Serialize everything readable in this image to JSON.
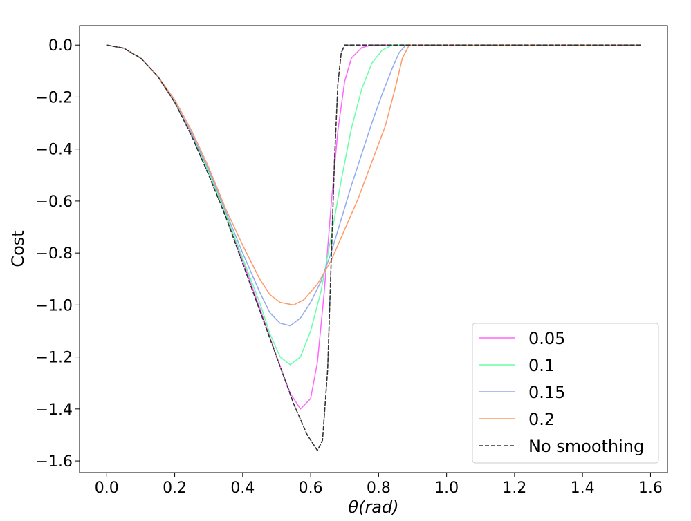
{
  "chart_data": {
    "type": "line",
    "title": "",
    "xlabel": "θ(rad)",
    "ylabel": "Cost",
    "xlim": [
      -0.08,
      1.65
    ],
    "ylim": [
      -1.645,
      0.075
    ],
    "xticks": [
      0.0,
      0.2,
      0.4,
      0.6,
      0.8,
      1.0,
      1.2,
      1.4,
      1.6
    ],
    "xtick_labels": [
      "0.0",
      "0.2",
      "0.4",
      "0.6",
      "0.8",
      "1.0",
      "1.2",
      "1.4",
      "1.6"
    ],
    "yticks": [
      0.0,
      -0.2,
      -0.4,
      -0.6,
      -0.8,
      -1.0,
      -1.2,
      -1.4,
      -1.6
    ],
    "ytick_labels": [
      "0.0",
      "−0.2",
      "−0.4",
      "−0.6",
      "−0.8",
      "−1.0",
      "−1.2",
      "−1.4",
      "−1.6"
    ],
    "grid": false,
    "legend_position": "lower-right",
    "series": [
      {
        "name": "0.05",
        "color": "#ff66ff",
        "dash": "solid",
        "points": [
          [
            0.0,
            0.0
          ],
          [
            0.05,
            -0.012
          ],
          [
            0.1,
            -0.05
          ],
          [
            0.15,
            -0.12
          ],
          [
            0.2,
            -0.22
          ],
          [
            0.25,
            -0.34
          ],
          [
            0.3,
            -0.49
          ],
          [
            0.35,
            -0.65
          ],
          [
            0.4,
            -0.83
          ],
          [
            0.45,
            -1.01
          ],
          [
            0.5,
            -1.2
          ],
          [
            0.54,
            -1.34
          ],
          [
            0.57,
            -1.4
          ],
          [
            0.6,
            -1.36
          ],
          [
            0.62,
            -1.22
          ],
          [
            0.64,
            -0.95
          ],
          [
            0.66,
            -0.62
          ],
          [
            0.68,
            -0.33
          ],
          [
            0.7,
            -0.14
          ],
          [
            0.72,
            -0.05
          ],
          [
            0.75,
            -0.01
          ],
          [
            0.78,
            0.0
          ],
          [
            1.0,
            0.0
          ],
          [
            1.2,
            0.0
          ],
          [
            1.4,
            0.0
          ],
          [
            1.57,
            0.0
          ]
        ]
      },
      {
        "name": "0.1",
        "color": "#66ffaa",
        "dash": "solid",
        "points": [
          [
            0.0,
            0.0
          ],
          [
            0.05,
            -0.012
          ],
          [
            0.1,
            -0.05
          ],
          [
            0.15,
            -0.12
          ],
          [
            0.2,
            -0.22
          ],
          [
            0.25,
            -0.34
          ],
          [
            0.3,
            -0.49
          ],
          [
            0.35,
            -0.65
          ],
          [
            0.4,
            -0.82
          ],
          [
            0.45,
            -0.99
          ],
          [
            0.48,
            -1.11
          ],
          [
            0.51,
            -1.2
          ],
          [
            0.54,
            -1.23
          ],
          [
            0.57,
            -1.2
          ],
          [
            0.6,
            -1.1
          ],
          [
            0.63,
            -0.95
          ],
          [
            0.66,
            -0.74
          ],
          [
            0.69,
            -0.52
          ],
          [
            0.72,
            -0.32
          ],
          [
            0.75,
            -0.17
          ],
          [
            0.78,
            -0.07
          ],
          [
            0.81,
            -0.02
          ],
          [
            0.84,
            0.0
          ],
          [
            1.0,
            0.0
          ],
          [
            1.2,
            0.0
          ],
          [
            1.4,
            0.0
          ],
          [
            1.57,
            0.0
          ]
        ]
      },
      {
        "name": "0.15",
        "color": "#8faaee",
        "dash": "solid",
        "points": [
          [
            0.0,
            0.0
          ],
          [
            0.05,
            -0.012
          ],
          [
            0.1,
            -0.05
          ],
          [
            0.15,
            -0.12
          ],
          [
            0.2,
            -0.22
          ],
          [
            0.25,
            -0.34
          ],
          [
            0.3,
            -0.48
          ],
          [
            0.35,
            -0.64
          ],
          [
            0.4,
            -0.8
          ],
          [
            0.45,
            -0.95
          ],
          [
            0.48,
            -1.03
          ],
          [
            0.51,
            -1.07
          ],
          [
            0.54,
            -1.08
          ],
          [
            0.57,
            -1.05
          ],
          [
            0.6,
            -0.99
          ],
          [
            0.63,
            -0.91
          ],
          [
            0.66,
            -0.8
          ],
          [
            0.69,
            -0.67
          ],
          [
            0.72,
            -0.54
          ],
          [
            0.75,
            -0.42
          ],
          [
            0.78,
            -0.3
          ],
          [
            0.81,
            -0.19
          ],
          [
            0.84,
            -0.09
          ],
          [
            0.86,
            -0.03
          ],
          [
            0.88,
            0.0
          ],
          [
            1.0,
            0.0
          ],
          [
            1.2,
            0.0
          ],
          [
            1.4,
            0.0
          ],
          [
            1.57,
            0.0
          ]
        ]
      },
      {
        "name": "0.2",
        "color": "#ff9966",
        "dash": "solid",
        "points": [
          [
            0.0,
            0.0
          ],
          [
            0.05,
            -0.012
          ],
          [
            0.1,
            -0.05
          ],
          [
            0.15,
            -0.12
          ],
          [
            0.2,
            -0.21
          ],
          [
            0.25,
            -0.33
          ],
          [
            0.3,
            -0.47
          ],
          [
            0.35,
            -0.63
          ],
          [
            0.4,
            -0.77
          ],
          [
            0.45,
            -0.9
          ],
          [
            0.48,
            -0.96
          ],
          [
            0.51,
            -0.99
          ],
          [
            0.55,
            -1.0
          ],
          [
            0.58,
            -0.98
          ],
          [
            0.62,
            -0.92
          ],
          [
            0.66,
            -0.83
          ],
          [
            0.7,
            -0.71
          ],
          [
            0.74,
            -0.59
          ],
          [
            0.78,
            -0.45
          ],
          [
            0.82,
            -0.31
          ],
          [
            0.85,
            -0.16
          ],
          [
            0.87,
            -0.05
          ],
          [
            0.89,
            0.0
          ],
          [
            1.0,
            0.0
          ],
          [
            1.2,
            0.0
          ],
          [
            1.4,
            0.0
          ],
          [
            1.57,
            0.0
          ]
        ]
      },
      {
        "name": "No smoothing",
        "color": "#333333",
        "dash": "dashed",
        "points": [
          [
            0.0,
            0.0
          ],
          [
            0.05,
            -0.012
          ],
          [
            0.1,
            -0.05
          ],
          [
            0.15,
            -0.12
          ],
          [
            0.2,
            -0.22
          ],
          [
            0.25,
            -0.35
          ],
          [
            0.3,
            -0.5
          ],
          [
            0.35,
            -0.66
          ],
          [
            0.4,
            -0.84
          ],
          [
            0.45,
            -1.02
          ],
          [
            0.5,
            -1.2
          ],
          [
            0.55,
            -1.38
          ],
          [
            0.59,
            -1.5
          ],
          [
            0.62,
            -1.56
          ],
          [
            0.635,
            -1.52
          ],
          [
            0.65,
            -1.25
          ],
          [
            0.66,
            -0.85
          ],
          [
            0.67,
            -0.45
          ],
          [
            0.68,
            -0.15
          ],
          [
            0.69,
            -0.03
          ],
          [
            0.7,
            0.0
          ],
          [
            0.8,
            0.0
          ],
          [
            1.0,
            0.0
          ],
          [
            1.2,
            0.0
          ],
          [
            1.4,
            0.0
          ],
          [
            1.57,
            0.0
          ]
        ]
      }
    ]
  }
}
